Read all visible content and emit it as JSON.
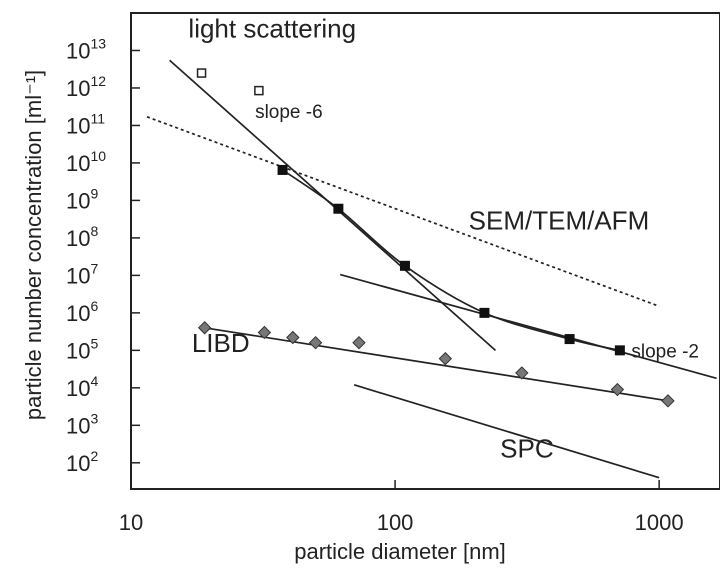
{
  "chart_data": {
    "type": "scatter",
    "xlabel": "particle diameter  [nm]",
    "ylabel": "particle number concentration [ml⁻¹]",
    "x_scale": "log",
    "y_scale": "log",
    "xlim": [
      10,
      1700
    ],
    "ylim": [
      20,
      100000000000000
    ],
    "x_ticks": [
      {
        "value": 10,
        "label": "10"
      },
      {
        "value": 100,
        "label": "100"
      },
      {
        "value": 1000,
        "label": "1000"
      }
    ],
    "y_ticks": [
      {
        "value": 100,
        "mantissa": "10",
        "exp": "2"
      },
      {
        "value": 1000,
        "mantissa": "10",
        "exp": "3"
      },
      {
        "value": 10000,
        "mantissa": "10",
        "exp": "4"
      },
      {
        "value": 100000,
        "mantissa": "10",
        "exp": "5"
      },
      {
        "value": 1000000,
        "mantissa": "10",
        "exp": "6"
      },
      {
        "value": 10000000,
        "mantissa": "10",
        "exp": "7"
      },
      {
        "value": 100000000,
        "mantissa": "10",
        "exp": "8"
      },
      {
        "value": 1000000000,
        "mantissa": "10",
        "exp": "9"
      },
      {
        "value": 10000000000,
        "mantissa": "10",
        "exp": "10"
      },
      {
        "value": 100000000000,
        "mantissa": "10",
        "exp": "11"
      },
      {
        "value": 1000000000000,
        "mantissa": "10",
        "exp": "12"
      },
      {
        "value": 10000000000000,
        "mantissa": "10",
        "exp": "13"
      }
    ],
    "grid": false,
    "series": [
      {
        "marker": "open-square",
        "color": "#222222",
        "points": [
          [
            18.5,
            2500000000000.0
          ],
          [
            30.5,
            850000000000.0
          ]
        ]
      },
      {
        "marker": "filled-square",
        "color": "#111111",
        "points": [
          [
            37.5,
            6500000000.0
          ],
          [
            61,
            600000000.0
          ],
          [
            109,
            18000000.0
          ],
          [
            218,
            1000000.0
          ],
          [
            458,
            200000.0
          ],
          [
            710,
            100000.0
          ]
        ]
      },
      {
        "marker": "diamond",
        "color": "#777777",
        "points": [
          [
            19,
            400000.0
          ],
          [
            32,
            300000.0
          ],
          [
            41,
            220000.0
          ],
          [
            50,
            160000.0
          ],
          [
            73,
            160000.0
          ],
          [
            155,
            60000.0
          ],
          [
            302,
            25000.0
          ],
          [
            695,
            9000.0
          ],
          [
            1080,
            4500.0
          ]
        ]
      }
    ],
    "lines": [
      {
        "style": "solid",
        "points": [
          [
            14,
            5500000000000.0
          ],
          [
            240,
            100000.0
          ]
        ]
      },
      {
        "style": "dotted",
        "points": [
          [
            11.5,
            170000000000.0
          ],
          [
            1000,
            1500000.0
          ]
        ]
      },
      {
        "style": "solid",
        "points": [
          [
            62,
            10500000.0
          ],
          [
            1650,
            18000.0
          ]
        ]
      },
      {
        "style": "solid",
        "points": [
          [
            70,
            12000.0
          ],
          [
            1000,
            40.0
          ]
        ]
      },
      {
        "style": "solid",
        "points": [
          [
            19,
            400000.0
          ],
          [
            1080,
            4500.0
          ]
        ]
      },
      {
        "style": "solid",
        "smooth": true,
        "points": [
          [
            37.5,
            6500000000.0
          ],
          [
            61,
            600000000.0
          ],
          [
            109,
            18000000.0
          ],
          [
            218,
            1000000.0
          ],
          [
            458,
            200000.0
          ],
          [
            710,
            100000.0
          ]
        ]
      }
    ],
    "annotations": [
      {
        "text": "light scattering",
        "size": "large",
        "x": 16.5,
        "y": 22000000000000.0
      },
      {
        "text": "slope -6",
        "size": "small",
        "x": 29.5,
        "y": 160000000000.0
      },
      {
        "text": "SEM/TEM/AFM",
        "size": "large",
        "x": 190,
        "y": 170000000.0
      },
      {
        "text": "LIBD",
        "size": "large",
        "x": 17,
        "y": 90000.0
      },
      {
        "text": "slope -2",
        "size": "small",
        "x": 785,
        "y": 65000.0
      },
      {
        "text": "SPC",
        "size": "large",
        "x": 250,
        "y": 140.0
      }
    ]
  }
}
